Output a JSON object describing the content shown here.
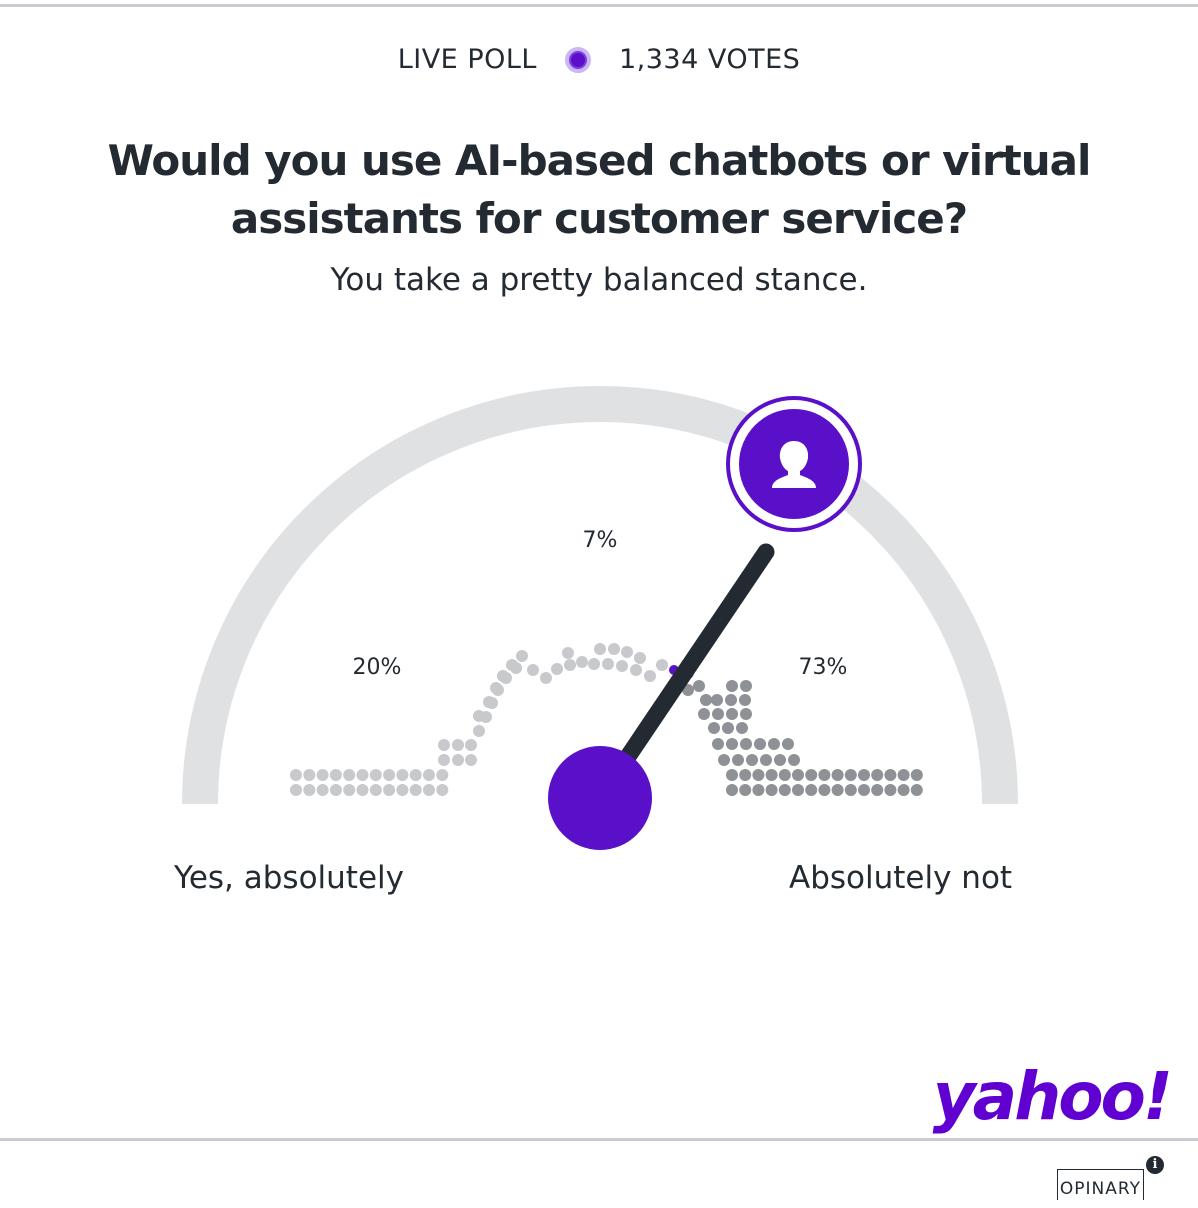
{
  "header": {
    "live_label": "LIVE POLL",
    "votes_label": "1,334 VOTES"
  },
  "question": {
    "line1": "Would you use AI-based chatbots or virtual",
    "line2": "assistants for customer service?"
  },
  "stance_text": "You take a pretty balanced stance.",
  "gauge": {
    "left_label": "Yes, absolutely",
    "right_label": "Absolutely not",
    "pointer_value": 0.69,
    "segments": [
      {
        "label": "20%",
        "value": 20,
        "color": "#c7c9cc"
      },
      {
        "label": "7%",
        "value": 7,
        "color": "#c7c9cc"
      },
      {
        "label": "73%",
        "value": 73,
        "color": "#8e9296"
      }
    ],
    "colors": {
      "accent": "#5a0fc8",
      "track": "#e0e1e3",
      "needle": "#232a31"
    }
  },
  "branding": {
    "logo_text": "yahoo!",
    "provider": "OPINARY",
    "info_glyph": "i"
  }
}
